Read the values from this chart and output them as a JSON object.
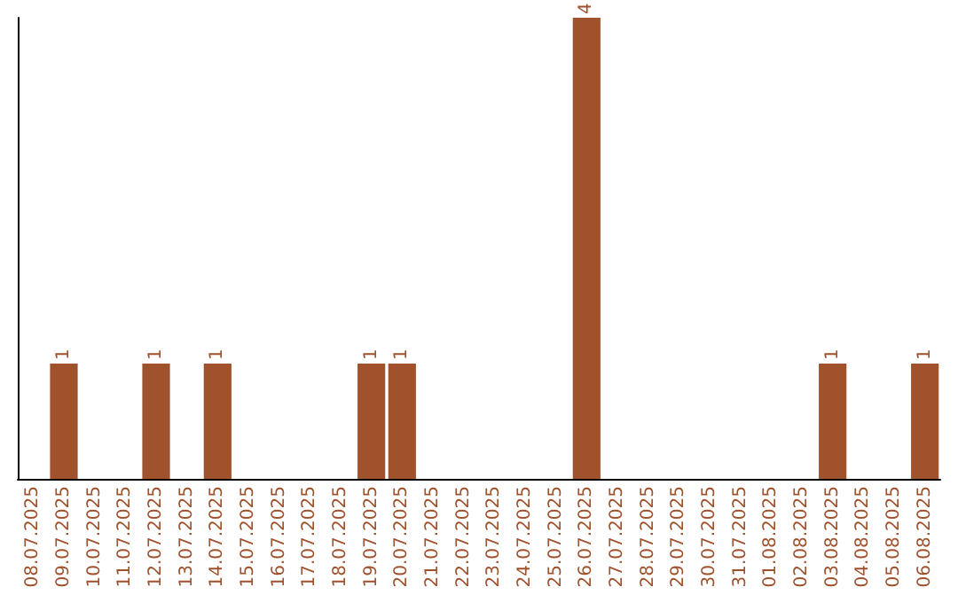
{
  "chart_data": {
    "type": "bar",
    "categories": [
      "08.07.2025",
      "09.07.2025",
      "10.07.2025",
      "11.07.2025",
      "12.07.2025",
      "13.07.2025",
      "14.07.2025",
      "15.07.2025",
      "16.07.2025",
      "17.07.2025",
      "18.07.2025",
      "19.07.2025",
      "20.07.2025",
      "21.07.2025",
      "22.07.2025",
      "23.07.2025",
      "24.07.2025",
      "25.07.2025",
      "26.07.2025",
      "27.07.2025",
      "28.07.2025",
      "29.07.2025",
      "30.07.2025",
      "31.07.2025",
      "01.08.2025",
      "02.08.2025",
      "03.08.2025",
      "04.08.2025",
      "05.08.2025",
      "06.08.2025"
    ],
    "values": [
      0,
      1,
      0,
      0,
      1,
      0,
      1,
      0,
      0,
      0,
      0,
      1,
      1,
      0,
      0,
      0,
      0,
      0,
      4,
      0,
      0,
      0,
      0,
      0,
      0,
      0,
      1,
      0,
      0,
      1
    ],
    "value_labels": [
      null,
      "1",
      null,
      null,
      "1",
      null,
      "1",
      null,
      null,
      null,
      null,
      "1",
      "1",
      null,
      null,
      null,
      null,
      null,
      "4",
      null,
      null,
      null,
      null,
      null,
      null,
      null,
      "1",
      null,
      null,
      "1"
    ],
    "color": "#a0522d",
    "grid": false,
    "tick_labels": "x"
  }
}
